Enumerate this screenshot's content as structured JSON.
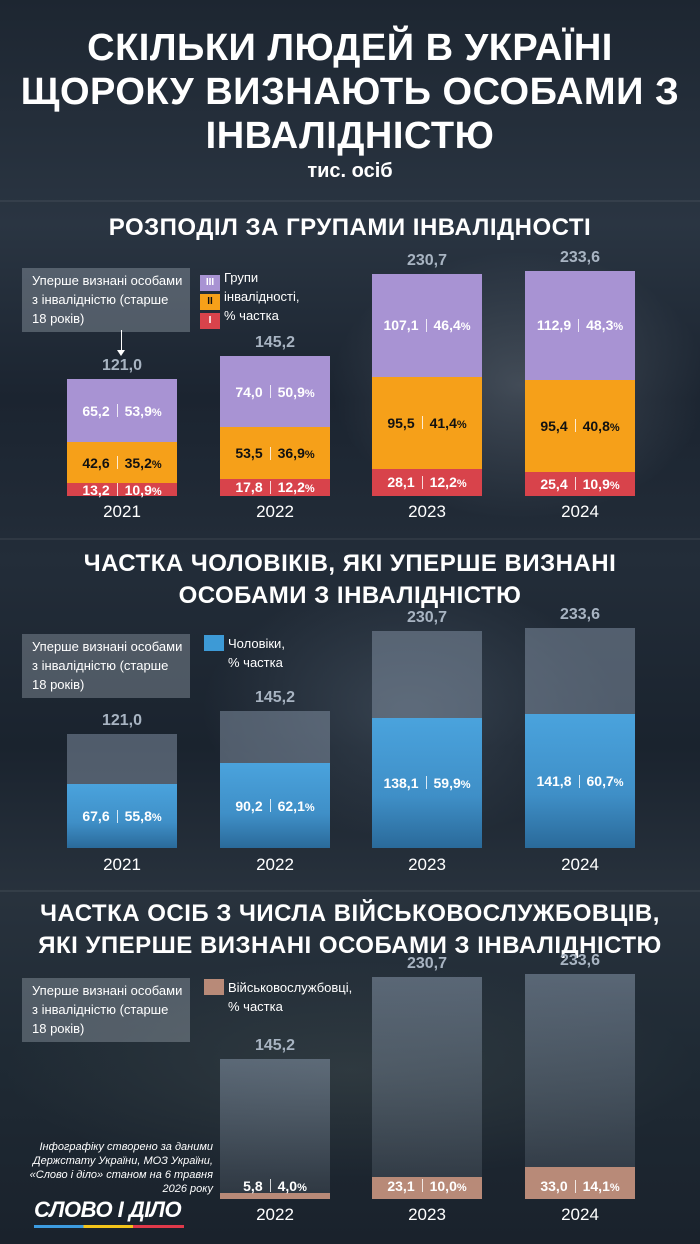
{
  "title": "СКІЛЬКИ ЛЮДЕЙ В УКРАЇНІ ЩОРОКУ ВИЗНАЮТЬ ОСОБАМИ З ІНВАЛІДНІСТЮ",
  "unit": "тис. осіб",
  "note_text": "Уперше визнані особами з інвалідністю (старше 18 років)",
  "credit": "Інфографіку створено за даними Держстату України, МОЗ України, «Слово і діло» станом на 6 травня 2026 року",
  "logo_text": "СЛОВО І ДІЛО",
  "colors": {
    "group_III": "#a893d3",
    "group_II": "#f6a019",
    "group_I": "#d8434b",
    "men": "#3d9ad6",
    "military": "#b88a78"
  },
  "sections": {
    "groups": {
      "title": "РОЗПОДІЛ ЗА ГРУПАМИ ІНВАЛІДНОСТІ",
      "legend": {
        "title": "Групи інвалідності, % частка",
        "line1": "Групи",
        "line2": "інвалідності,",
        "line3": "% частка",
        "labels": [
          "III",
          "II",
          "I"
        ]
      }
    },
    "men": {
      "title": "ЧАСТКА ЧОЛОВІКІВ, ЯКІ УПЕРШЕ ВИЗНАНІ ОСОБАМИ З ІНВАЛІДНІСТЮ",
      "legend": {
        "line1": "Чоловіки,",
        "line2": "% частка"
      }
    },
    "military": {
      "title": "ЧАСТКА ОСІБ З ЧИСЛА ВІЙСЬКОВОСЛУЖБОВЦІВ, ЯКІ УПЕРШЕ ВИЗНАНІ ОСОБАМИ З ІНВАЛІДНІСТЮ",
      "legend": {
        "line1": "Військовослужбовці,",
        "line2": "% частка"
      }
    }
  },
  "chart_data": [
    {
      "type": "bar",
      "title": "РОЗПОДІЛ ЗА ГРУПАМИ ІНВАЛІДНОСТІ",
      "stacked": true,
      "categories": [
        "2021",
        "2022",
        "2023",
        "2024"
      ],
      "totals": [
        "121,0",
        "145,2",
        "230,7",
        "233,6"
      ],
      "total_values": [
        121.0,
        145.2,
        230.7,
        233.6
      ],
      "series": [
        {
          "name": "I",
          "values": [
            13.2,
            17.8,
            28.1,
            25.4
          ],
          "labels": [
            "13,2",
            "17,8",
            "28,1",
            "25,4"
          ],
          "pct": [
            "10,9",
            "12,2",
            "12,2",
            "10,9"
          ]
        },
        {
          "name": "II",
          "values": [
            42.6,
            53.5,
            95.5,
            95.4
          ],
          "labels": [
            "42,6",
            "53,5",
            "95,5",
            "95,4"
          ],
          "pct": [
            "35,2",
            "36,9",
            "41,4",
            "40,8"
          ]
        },
        {
          "name": "III",
          "values": [
            65.2,
            74.0,
            107.1,
            112.9
          ],
          "labels": [
            "65,2",
            "74,0",
            "107,1",
            "112,9"
          ],
          "pct": [
            "53,9",
            "50,9",
            "46,4",
            "48,3"
          ]
        }
      ],
      "ylim": [
        0,
        233.6
      ]
    },
    {
      "type": "bar",
      "title": "ЧАСТКА ЧОЛОВІКІВ, ЯКІ УПЕРШЕ ВИЗНАНІ ОСОБАМИ З ІНВАЛІДНІСТЮ",
      "categories": [
        "2021",
        "2022",
        "2023",
        "2024"
      ],
      "totals": [
        "121,0",
        "145,2",
        "230,7",
        "233,6"
      ],
      "total_values": [
        121.0,
        145.2,
        230.7,
        233.6
      ],
      "series": [
        {
          "name": "Чоловіки",
          "values": [
            67.6,
            90.2,
            138.1,
            141.8
          ],
          "labels": [
            "67,6",
            "90,2",
            "138,1",
            "141,8"
          ],
          "pct": [
            "55,8",
            "62,1",
            "59,9",
            "60,7"
          ]
        }
      ],
      "ylim": [
        0,
        233.6
      ]
    },
    {
      "type": "bar",
      "title": "ЧАСТКА ОСІБ З ЧИСЛА ВІЙСЬКОВОСЛУЖБОВЦІВ, ЯКІ УПЕРШЕ ВИЗНАНІ ОСОБАМИ З ІНВАЛІДНІСТЮ",
      "categories": [
        "2022",
        "2023",
        "2024"
      ],
      "totals": [
        "145,2",
        "230,7",
        "233,6"
      ],
      "total_values": [
        145.2,
        230.7,
        233.6
      ],
      "series": [
        {
          "name": "Військовослужбовці",
          "values": [
            5.8,
            23.1,
            33.0
          ],
          "labels": [
            "5,8",
            "23,1",
            "33,0"
          ],
          "pct": [
            "4,0",
            "10,0",
            "14,1"
          ]
        }
      ],
      "ylim": [
        0,
        233.6
      ]
    }
  ]
}
